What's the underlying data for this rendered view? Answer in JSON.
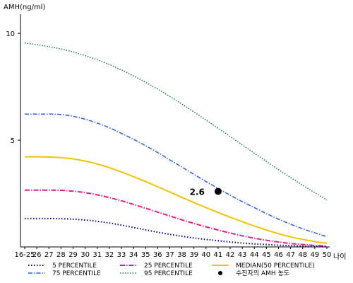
{
  "chart_data": {
    "type": "line",
    "ylabel": "AMH(ng/ml)",
    "xlabel": "나이",
    "ylim": [
      0,
      10.9
    ],
    "yticks": [
      "5",
      "10"
    ],
    "categories": [
      "16-25",
      "26",
      "27",
      "28",
      "29",
      "30",
      "31",
      "32",
      "33",
      "34",
      "35",
      "36",
      "37",
      "38",
      "39",
      "40",
      "41",
      "42",
      "43",
      "44",
      "45",
      "46",
      "47",
      "48",
      "49",
      "50"
    ],
    "series": [
      {
        "name": "5 PERCENTILE",
        "color": "#000080",
        "dash": "1.5,2.5",
        "width": 2,
        "values": [
          1.33,
          1.33,
          1.33,
          1.32,
          1.3,
          1.26,
          1.2,
          1.12,
          1.02,
          0.91,
          0.8,
          0.69,
          0.59,
          0.5,
          0.42,
          0.35,
          0.29,
          0.23,
          0.18,
          0.14,
          0.11,
          0.08,
          0.06,
          0.04,
          0.02,
          0.01
        ]
      },
      {
        "name": "75 PERCENTILE",
        "color": "#2e5ed8",
        "dash": "6,2,1.5,2",
        "width": 1.5,
        "values": [
          6.22,
          6.22,
          6.22,
          6.2,
          6.12,
          5.98,
          5.8,
          5.58,
          5.32,
          5.04,
          4.74,
          4.42,
          4.08,
          3.74,
          3.4,
          3.06,
          2.74,
          2.42,
          2.12,
          1.84,
          1.56,
          1.3,
          1.06,
          0.85,
          0.66,
          0.48
        ]
      },
      {
        "name": "25 PERCENTILE",
        "color": "#e0208a",
        "dash": "7,2,1.5,2",
        "width": 2,
        "values": [
          2.66,
          2.66,
          2.66,
          2.65,
          2.61,
          2.54,
          2.44,
          2.31,
          2.16,
          1.99,
          1.81,
          1.63,
          1.45,
          1.27,
          1.1,
          0.94,
          0.79,
          0.65,
          0.52,
          0.41,
          0.31,
          0.23,
          0.16,
          0.11,
          0.07,
          0.04
        ]
      },
      {
        "name": "95 PERCENTILE",
        "color": "#1e7a3c",
        "dash": "1.5,2",
        "width": 1.5,
        "values": [
          9.55,
          9.47,
          9.38,
          9.27,
          9.13,
          8.96,
          8.76,
          8.54,
          8.29,
          8.01,
          7.71,
          7.39,
          7.05,
          6.69,
          6.32,
          5.94,
          5.56,
          5.17,
          4.78,
          4.39,
          4.0,
          3.62,
          3.25,
          2.89,
          2.54,
          2.2
        ]
      },
      {
        "name": "MEDIAN(50 PERCENTILE)",
        "color": "#f2c400",
        "dash": "",
        "width": 2,
        "values": [
          4.22,
          4.22,
          4.21,
          4.18,
          4.12,
          4.02,
          3.88,
          3.71,
          3.51,
          3.29,
          3.06,
          2.82,
          2.57,
          2.32,
          2.08,
          1.84,
          1.61,
          1.39,
          1.18,
          0.98,
          0.79,
          0.62,
          0.47,
          0.35,
          0.25,
          0.17
        ]
      }
    ],
    "point": {
      "name": "수진자의 AMH 농도",
      "category": "41",
      "value": 2.6,
      "label": "2.6"
    },
    "legend": [
      {
        "label": "5 PERCENTILE"
      },
      {
        "label": "25 PERCENTILE"
      },
      {
        "label": "MEDIAN(50 PERCENTILE)"
      },
      {
        "label": "75 PERCENTILE"
      },
      {
        "label": "95 PERCENTILE"
      },
      {
        "label": "수진자의 AMH 농도"
      }
    ]
  }
}
